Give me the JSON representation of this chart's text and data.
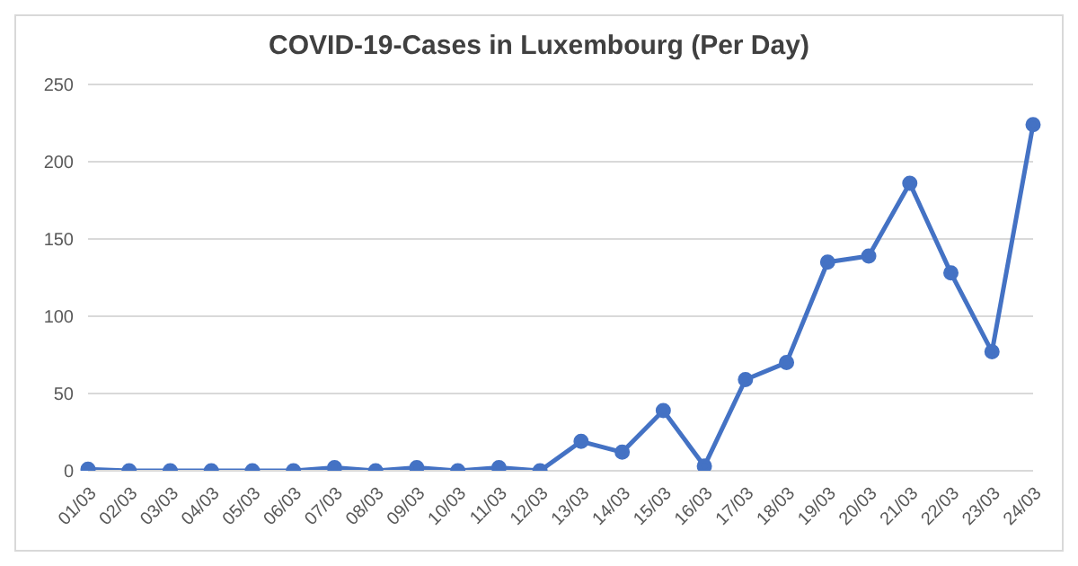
{
  "chart_data": {
    "type": "line",
    "title": "COVID-19-Cases in Luxembourg (Per Day)",
    "categories": [
      "01/03",
      "02/03",
      "03/03",
      "04/03",
      "05/03",
      "06/03",
      "07/03",
      "08/03",
      "09/03",
      "10/03",
      "11/03",
      "12/03",
      "13/03",
      "14/03",
      "15/03",
      "16/03",
      "17/03",
      "18/03",
      "19/03",
      "20/03",
      "21/03",
      "22/03",
      "23/03",
      "24/03"
    ],
    "series": [
      {
        "color": "#4472c4",
        "values": [
          1,
          0,
          0,
          0,
          0,
          0,
          2,
          0,
          2,
          0,
          2,
          0,
          19,
          12,
          39,
          3,
          59,
          70,
          135,
          139,
          186,
          128,
          77,
          224
        ]
      }
    ],
    "ylim": [
      0,
      250
    ],
    "yticks": [
      0,
      50,
      100,
      150,
      200,
      250
    ],
    "grid": "y",
    "marker": "circle",
    "line_style": "solid"
  }
}
